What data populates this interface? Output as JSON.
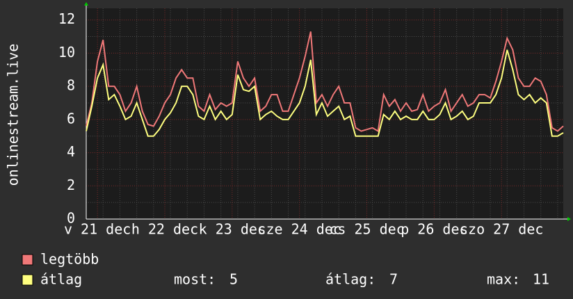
{
  "chart_data": {
    "type": "line",
    "y_label": "onlinestream.live",
    "x": [
      0,
      2,
      4,
      6,
      8,
      10,
      12,
      14,
      16,
      18,
      20,
      22,
      24,
      26,
      28,
      30,
      32,
      34,
      36,
      38,
      40,
      42,
      44,
      46,
      48,
      50,
      52,
      54,
      56,
      58,
      60,
      62,
      64,
      66,
      68,
      70,
      72,
      74,
      76,
      78,
      80,
      82,
      84,
      86,
      88,
      90,
      92,
      94,
      96,
      98,
      100,
      102,
      104,
      106,
      108,
      110,
      112,
      114,
      116,
      118,
      120,
      122,
      124,
      126,
      128,
      130,
      132,
      134,
      136,
      138,
      140,
      142,
      144,
      146,
      148,
      150,
      152,
      154,
      156,
      158,
      160,
      162,
      164,
      166,
      168,
      170
    ],
    "series": [
      {
        "name": "legtöbb",
        "color": "#f07878",
        "values": [
          5.6,
          7,
          9.5,
          10.8,
          8,
          8,
          7.5,
          6.5,
          7,
          8,
          6.5,
          5.7,
          5.6,
          6.2,
          7,
          7.5,
          8.5,
          9,
          8.5,
          8.5,
          6.8,
          6.5,
          7.5,
          6.6,
          7,
          6.8,
          7,
          9.5,
          8.5,
          8,
          8.5,
          6.5,
          6.8,
          7.5,
          7.5,
          6.5,
          6.5,
          7.5,
          8.5,
          9.8,
          11.3,
          7,
          7.5,
          6.8,
          7.5,
          8,
          7,
          7,
          5.5,
          5.3,
          5.4,
          5.5,
          5.3,
          7.5,
          6.8,
          7.2,
          6.5,
          7,
          6.5,
          6.6,
          7.5,
          6.5,
          6.8,
          7,
          7.8,
          6.5,
          7,
          7.5,
          6.8,
          7,
          7.5,
          7.5,
          7.3,
          8.3,
          9.5,
          10.9,
          10.2,
          8.5,
          8,
          8,
          8.5,
          8.3,
          7.5,
          5.5,
          5.3,
          5.6
        ]
      },
      {
        "name": "átlag",
        "color": "#ffff80",
        "values": [
          5.3,
          6.8,
          8.5,
          9.3,
          7.2,
          7.5,
          6.8,
          6,
          6.2,
          7,
          6,
          5,
          5,
          5.4,
          6,
          6.4,
          7,
          8,
          8,
          7.5,
          6.2,
          6,
          6.8,
          6,
          6.5,
          6,
          6.3,
          8.7,
          7.8,
          7.7,
          8,
          6,
          6.3,
          6.5,
          6.2,
          6,
          6,
          6.5,
          7,
          8,
          9.6,
          6.3,
          7,
          6.2,
          6.5,
          6.8,
          6,
          6.2,
          5,
          5,
          5,
          5,
          5,
          6.3,
          6,
          6.5,
          6,
          6.2,
          6,
          6,
          6.5,
          6,
          6,
          6.3,
          7,
          6,
          6.2,
          6.5,
          6,
          6.2,
          7,
          7,
          7,
          7.5,
          8.5,
          10.2,
          9,
          7.5,
          7.2,
          7.5,
          7,
          7.3,
          7,
          5,
          5,
          5.2
        ]
      }
    ],
    "xlim": [
      0,
      170
    ],
    "xticks": [
      {
        "value": 4,
        "label": "v 21 dec"
      },
      {
        "value": 28,
        "label": "h 22 dec"
      },
      {
        "value": 52,
        "label": "k 23 dec"
      },
      {
        "value": 76,
        "label": "sze 24 dec"
      },
      {
        "value": 100,
        "label": "cs 25 dec"
      },
      {
        "value": 124,
        "label": "p 26 dec"
      },
      {
        "value": 148,
        "label": "szo 27 dec"
      }
    ],
    "ylim": [
      0,
      12.7
    ],
    "yticks": [
      0,
      2,
      4,
      6,
      8,
      10,
      12
    ],
    "grid": true,
    "stats": [
      {
        "label": "most:",
        "value": 5
      },
      {
        "label": "átlag:",
        "value": 7
      },
      {
        "label": "max:",
        "value": 11
      }
    ]
  }
}
